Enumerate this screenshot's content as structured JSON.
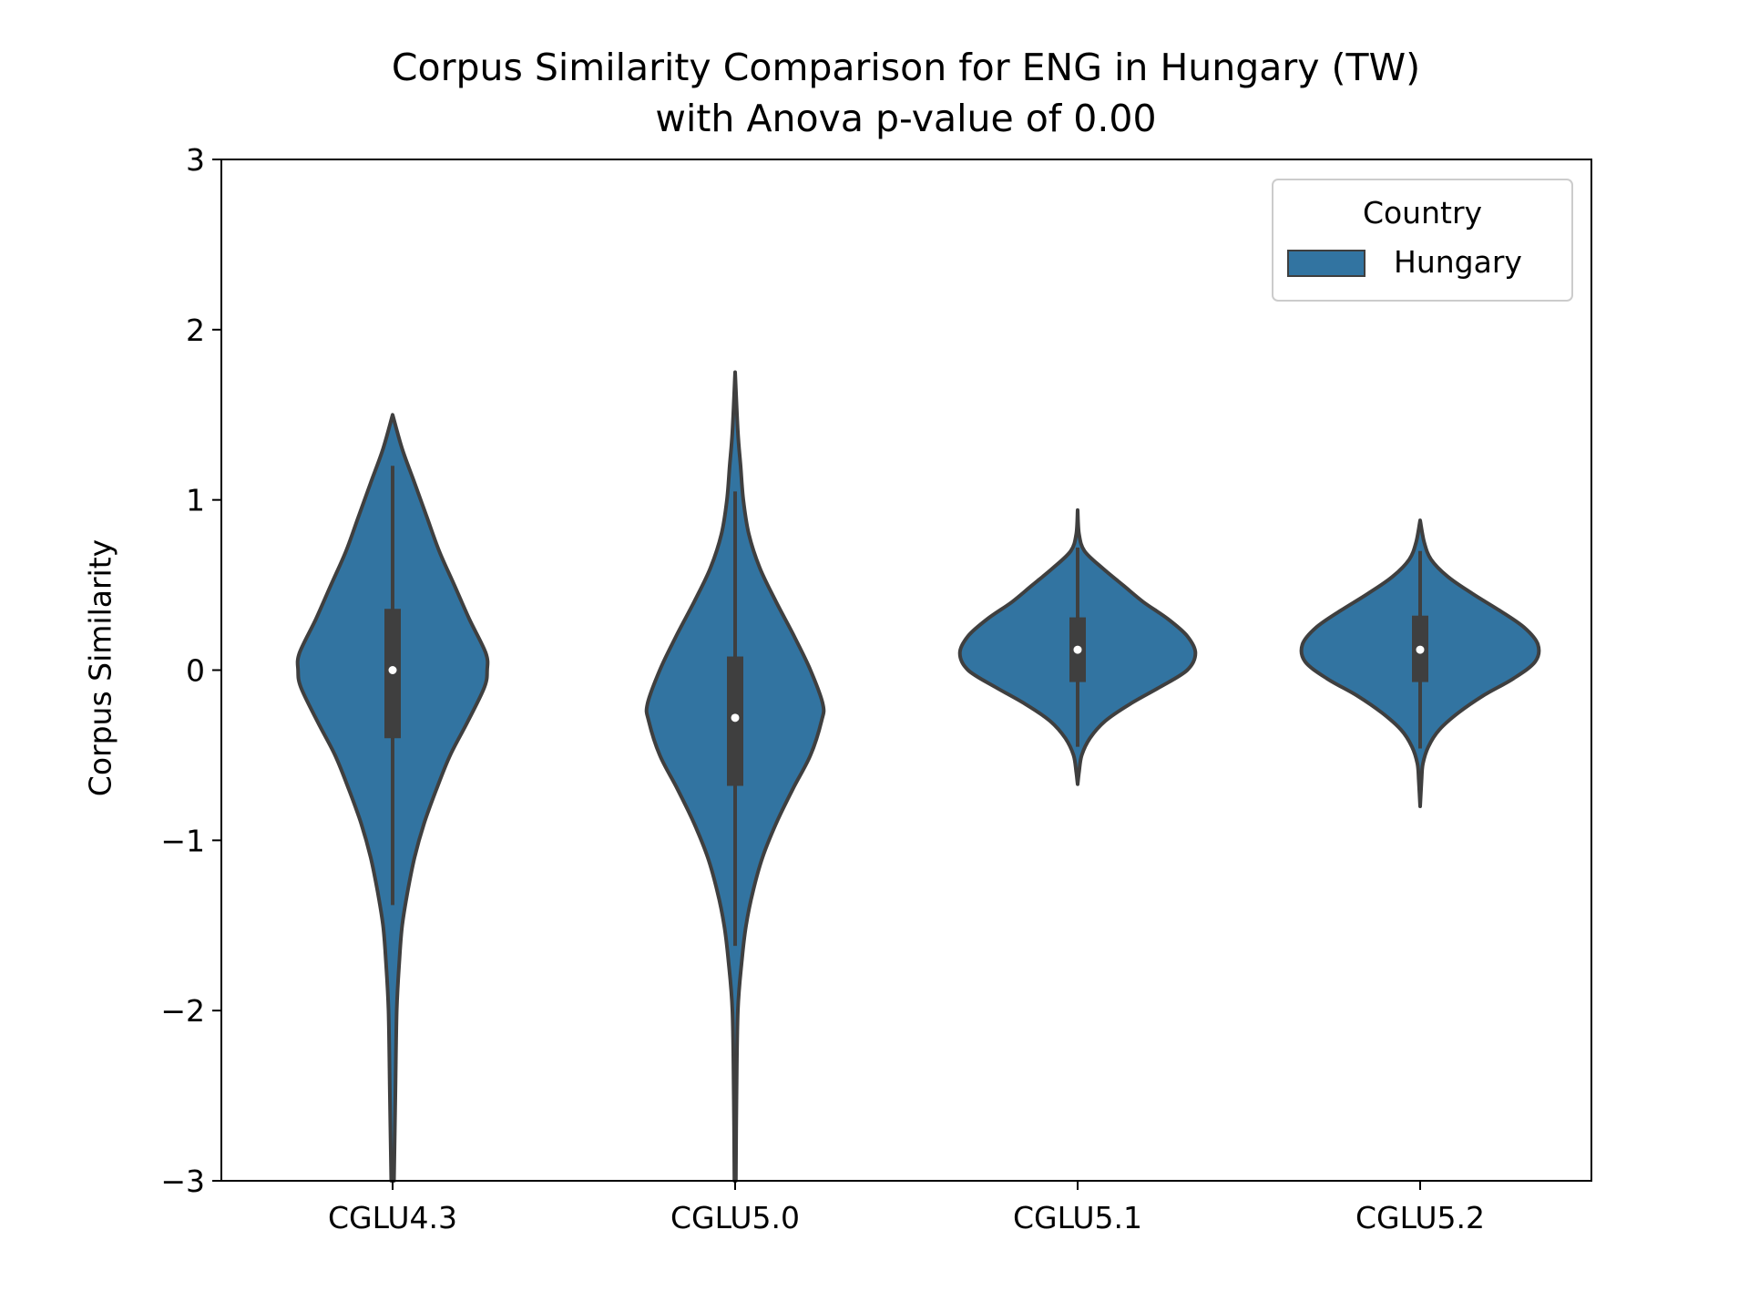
{
  "chart_data": {
    "type": "violin",
    "title_line1": "Corpus Similarity Comparison for ENG in Hungary (TW)",
    "title_line2": "with Anova p-value of 0.00",
    "xlabel": "",
    "ylabel": "Corpus Similarity",
    "ylim": [
      -3,
      3
    ],
    "yticks": [
      3,
      2,
      1,
      0,
      -1,
      -2,
      -3
    ],
    "ytick_labels": [
      "3",
      "2",
      "1",
      "0",
      "−1",
      "−2",
      "−3"
    ],
    "categories": [
      "CGLU4.3",
      "CGLU5.0",
      "CGLU5.1",
      "CGLU5.2"
    ],
    "legend": {
      "title": "Country",
      "placement": "top-right",
      "entries": [
        "Hungary"
      ]
    },
    "colors": {
      "fill": "#3274a1",
      "edge": "#3f3f3f",
      "median": "#ffffff"
    },
    "grid": false,
    "series": [
      {
        "name": "Hungary",
        "violins": [
          {
            "category": "CGLU4.3",
            "median": 0.0,
            "q1": -0.4,
            "q3": 0.36,
            "whisker_low": -1.38,
            "whisker_high": 1.2,
            "range": [
              -3.0,
              1.5
            ],
            "density": [
              [
                1.5,
                0.0
              ],
              [
                1.3,
                0.07
              ],
              [
                1.1,
                0.16
              ],
              [
                0.9,
                0.25
              ],
              [
                0.7,
                0.34
              ],
              [
                0.5,
                0.45
              ],
              [
                0.3,
                0.56
              ],
              [
                0.1,
                0.68
              ],
              [
                0.0,
                0.69
              ],
              [
                -0.1,
                0.67
              ],
              [
                -0.3,
                0.55
              ],
              [
                -0.5,
                0.42
              ],
              [
                -0.7,
                0.32
              ],
              [
                -0.9,
                0.23
              ],
              [
                -1.1,
                0.16
              ],
              [
                -1.3,
                0.11
              ],
              [
                -1.5,
                0.07
              ],
              [
                -1.7,
                0.05
              ],
              [
                -2.0,
                0.03
              ],
              [
                -2.5,
                0.02
              ],
              [
                -3.0,
                0.01
              ]
            ]
          },
          {
            "category": "CGLU5.0",
            "median": -0.28,
            "q1": -0.68,
            "q3": 0.08,
            "whisker_low": -1.62,
            "whisker_high": 1.05,
            "range": [
              -3.0,
              1.75
            ],
            "density": [
              [
                1.75,
                0.0
              ],
              [
                1.4,
                0.02
              ],
              [
                1.2,
                0.04
              ],
              [
                1.0,
                0.06
              ],
              [
                0.8,
                0.1
              ],
              [
                0.6,
                0.18
              ],
              [
                0.4,
                0.3
              ],
              [
                0.2,
                0.43
              ],
              [
                0.0,
                0.55
              ],
              [
                -0.2,
                0.64
              ],
              [
                -0.3,
                0.63
              ],
              [
                -0.5,
                0.55
              ],
              [
                -0.7,
                0.42
              ],
              [
                -0.9,
                0.3
              ],
              [
                -1.1,
                0.2
              ],
              [
                -1.3,
                0.13
              ],
              [
                -1.5,
                0.08
              ],
              [
                -1.7,
                0.05
              ],
              [
                -2.0,
                0.02
              ],
              [
                -2.5,
                0.01
              ],
              [
                -3.0,
                0.005
              ]
            ]
          },
          {
            "category": "CGLU5.1",
            "median": 0.12,
            "q1": -0.07,
            "q3": 0.31,
            "whisker_low": -0.45,
            "whisker_high": 0.72,
            "range": [
              -0.67,
              0.94
            ],
            "density": [
              [
                0.94,
                0.0
              ],
              [
                0.8,
                0.01
              ],
              [
                0.7,
                0.05
              ],
              [
                0.6,
                0.18
              ],
              [
                0.5,
                0.33
              ],
              [
                0.4,
                0.48
              ],
              [
                0.3,
                0.66
              ],
              [
                0.2,
                0.8
              ],
              [
                0.1,
                0.86
              ],
              [
                0.0,
                0.8
              ],
              [
                -0.1,
                0.6
              ],
              [
                -0.2,
                0.38
              ],
              [
                -0.3,
                0.2
              ],
              [
                -0.4,
                0.09
              ],
              [
                -0.5,
                0.03
              ],
              [
                -0.6,
                0.01
              ],
              [
                -0.67,
                0.0
              ]
            ]
          },
          {
            "category": "CGLU5.2",
            "median": 0.12,
            "q1": -0.07,
            "q3": 0.32,
            "whisker_low": -0.46,
            "whisker_high": 0.7,
            "range": [
              -0.8,
              0.88
            ],
            "density": [
              [
                0.88,
                0.0
              ],
              [
                0.75,
                0.03
              ],
              [
                0.65,
                0.08
              ],
              [
                0.55,
                0.2
              ],
              [
                0.45,
                0.38
              ],
              [
                0.35,
                0.58
              ],
              [
                0.25,
                0.76
              ],
              [
                0.15,
                0.86
              ],
              [
                0.05,
                0.84
              ],
              [
                -0.05,
                0.68
              ],
              [
                -0.15,
                0.46
              ],
              [
                -0.25,
                0.28
              ],
              [
                -0.35,
                0.14
              ],
              [
                -0.45,
                0.06
              ],
              [
                -0.55,
                0.02
              ],
              [
                -0.65,
                0.01
              ],
              [
                -0.8,
                0.0
              ]
            ]
          }
        ]
      }
    ]
  }
}
